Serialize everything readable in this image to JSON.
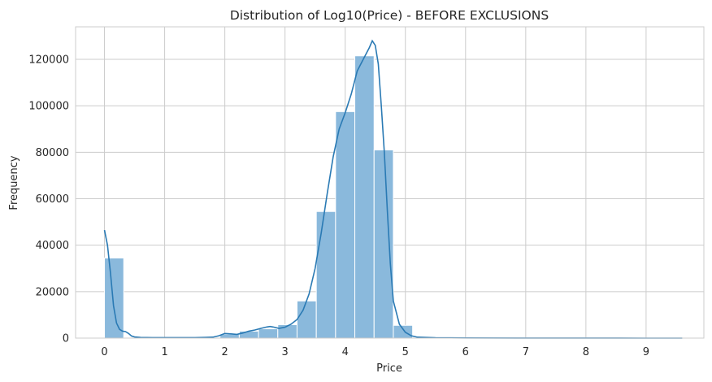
{
  "chart_data": {
    "type": "bar",
    "title": "Distribution of Log10(Price) - BEFORE EXCLUSIONS",
    "xlabel": "Price",
    "ylabel": "Frequency",
    "xlim": [
      -0.48,
      9.96
    ],
    "ylim": [
      0,
      134000
    ],
    "x_ticks": [
      0,
      1,
      2,
      3,
      4,
      5,
      6,
      7,
      8,
      9
    ],
    "y_ticks": [
      0,
      20000,
      40000,
      60000,
      80000,
      100000,
      120000
    ],
    "grid": true,
    "colors": {
      "bar_fill": "#8ab9dc",
      "bar_edge": "#ffffff",
      "kde_line": "#2a7ab4",
      "grid": "#cccccc",
      "frame": "#cccccc"
    },
    "bin_width": 0.32,
    "bins": [
      {
        "x0": 0.0,
        "count": 34500
      },
      {
        "x0": 0.32,
        "count": 300
      },
      {
        "x0": 0.64,
        "count": 100
      },
      {
        "x0": 0.96,
        "count": 100
      },
      {
        "x0": 1.28,
        "count": 100
      },
      {
        "x0": 1.6,
        "count": 150
      },
      {
        "x0": 1.92,
        "count": 1700
      },
      {
        "x0": 2.24,
        "count": 3000
      },
      {
        "x0": 2.56,
        "count": 4000
      },
      {
        "x0": 2.88,
        "count": 5800
      },
      {
        "x0": 3.2,
        "count": 16000
      },
      {
        "x0": 3.52,
        "count": 54500
      },
      {
        "x0": 3.84,
        "count": 97500
      },
      {
        "x0": 4.16,
        "count": 121500
      },
      {
        "x0": 4.48,
        "count": 81000
      },
      {
        "x0": 4.8,
        "count": 5500
      },
      {
        "x0": 5.12,
        "count": 200
      },
      {
        "x0": 5.44,
        "count": 50
      },
      {
        "x0": 5.76,
        "count": 30
      },
      {
        "x0": 6.08,
        "count": 20
      },
      {
        "x0": 6.4,
        "count": 10
      },
      {
        "x0": 6.72,
        "count": 10
      },
      {
        "x0": 7.04,
        "count": 5
      },
      {
        "x0": 7.36,
        "count": 5
      },
      {
        "x0": 7.68,
        "count": 5
      },
      {
        "x0": 8.0,
        "count": 5
      },
      {
        "x0": 8.32,
        "count": 3
      },
      {
        "x0": 8.64,
        "count": 3
      },
      {
        "x0": 8.96,
        "count": 3
      },
      {
        "x0": 9.28,
        "count": 3
      }
    ],
    "kde": [
      [
        0.0,
        46500
      ],
      [
        0.05,
        40000
      ],
      [
        0.1,
        28000
      ],
      [
        0.15,
        14000
      ],
      [
        0.2,
        6500
      ],
      [
        0.25,
        3800
      ],
      [
        0.3,
        3000
      ],
      [
        0.35,
        2800
      ],
      [
        0.4,
        2000
      ],
      [
        0.45,
        900
      ],
      [
        0.5,
        500
      ],
      [
        0.6,
        300
      ],
      [
        0.8,
        200
      ],
      [
        1.0,
        200
      ],
      [
        1.5,
        200
      ],
      [
        1.8,
        400
      ],
      [
        1.9,
        1000
      ],
      [
        2.0,
        2000
      ],
      [
        2.1,
        1800
      ],
      [
        2.2,
        1600
      ],
      [
        2.3,
        2200
      ],
      [
        2.4,
        3000
      ],
      [
        2.5,
        3500
      ],
      [
        2.6,
        4200
      ],
      [
        2.7,
        4800
      ],
      [
        2.75,
        5000
      ],
      [
        2.8,
        4800
      ],
      [
        2.9,
        4200
      ],
      [
        3.0,
        4700
      ],
      [
        3.1,
        6000
      ],
      [
        3.2,
        8000
      ],
      [
        3.3,
        12000
      ],
      [
        3.4,
        19000
      ],
      [
        3.5,
        30000
      ],
      [
        3.6,
        45000
      ],
      [
        3.7,
        62000
      ],
      [
        3.8,
        78000
      ],
      [
        3.9,
        90000
      ],
      [
        4.0,
        97000
      ],
      [
        4.1,
        105000
      ],
      [
        4.2,
        115000
      ],
      [
        4.3,
        120000
      ],
      [
        4.4,
        125000
      ],
      [
        4.45,
        128000
      ],
      [
        4.5,
        126000
      ],
      [
        4.55,
        118000
      ],
      [
        4.6,
        100000
      ],
      [
        4.65,
        80000
      ],
      [
        4.7,
        55000
      ],
      [
        4.75,
        32000
      ],
      [
        4.8,
        16000
      ],
      [
        4.9,
        6000
      ],
      [
        5.0,
        2500
      ],
      [
        5.1,
        1000
      ],
      [
        5.2,
        400
      ],
      [
        5.5,
        150
      ],
      [
        6.0,
        60
      ],
      [
        7.0,
        20
      ],
      [
        8.0,
        10
      ],
      [
        9.0,
        5
      ],
      [
        9.6,
        3
      ]
    ]
  }
}
